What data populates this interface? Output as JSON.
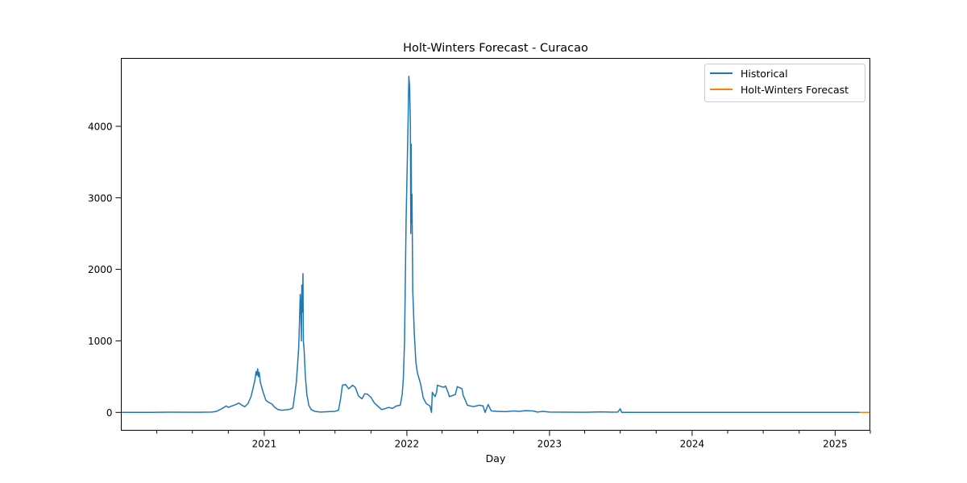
{
  "chart_data": {
    "type": "line",
    "title": "Holt-Winters Forecast - Curacao",
    "xlabel": "Day",
    "ylabel": "",
    "x_type": "date",
    "xlim": [
      "2020-01-01",
      "2025-03-31"
    ],
    "ylim": [
      -250,
      4950
    ],
    "x_ticks": [
      {
        "date": "2021-01-01",
        "label": "2021"
      },
      {
        "date": "2022-01-01",
        "label": "2022"
      },
      {
        "date": "2023-01-01",
        "label": "2023"
      },
      {
        "date": "2024-01-01",
        "label": "2024"
      },
      {
        "date": "2025-01-01",
        "label": "2025"
      }
    ],
    "x_minor_ticks": [
      "2020-04-01",
      "2020-07-01",
      "2020-10-01",
      "2021-04-01",
      "2021-07-01",
      "2021-10-01",
      "2022-04-01",
      "2022-07-01",
      "2022-10-01",
      "2023-04-01",
      "2023-07-01",
      "2023-10-01",
      "2024-04-01",
      "2024-07-01",
      "2024-10-01",
      "2025-04-01"
    ],
    "y_ticks": [
      0,
      1000,
      2000,
      3000,
      4000
    ],
    "y_tick_labels": [
      "0",
      "1000",
      "2000",
      "3000",
      "4000"
    ],
    "legend": {
      "position": "top-right",
      "entries": [
        "Historical",
        "Holt-Winters Forecast"
      ]
    },
    "grid": false,
    "series": [
      {
        "name": "Historical",
        "color": "#1f77b4",
        "points": [
          [
            "2020-01-01",
            0
          ],
          [
            "2020-03-15",
            0
          ],
          [
            "2020-05-01",
            3
          ],
          [
            "2020-07-15",
            2
          ],
          [
            "2020-08-20",
            5
          ],
          [
            "2020-09-01",
            15
          ],
          [
            "2020-09-10",
            40
          ],
          [
            "2020-09-20",
            70
          ],
          [
            "2020-09-25",
            90
          ],
          [
            "2020-10-01",
            70
          ],
          [
            "2020-10-10",
            90
          ],
          [
            "2020-10-20",
            110
          ],
          [
            "2020-10-28",
            130
          ],
          [
            "2020-11-05",
            100
          ],
          [
            "2020-11-12",
            80
          ],
          [
            "2020-11-20",
            120
          ],
          [
            "2020-11-28",
            220
          ],
          [
            "2020-12-03",
            330
          ],
          [
            "2020-12-08",
            450
          ],
          [
            "2020-12-11",
            570
          ],
          [
            "2020-12-13",
            520
          ],
          [
            "2020-12-15",
            610
          ],
          [
            "2020-12-17",
            500
          ],
          [
            "2020-12-19",
            560
          ],
          [
            "2020-12-22",
            420
          ],
          [
            "2020-12-28",
            300
          ],
          [
            "2021-01-05",
            170
          ],
          [
            "2021-01-12",
            140
          ],
          [
            "2021-01-20",
            120
          ],
          [
            "2021-01-28",
            70
          ],
          [
            "2021-02-05",
            40
          ],
          [
            "2021-02-15",
            30
          ],
          [
            "2021-02-25",
            35
          ],
          [
            "2021-03-05",
            40
          ],
          [
            "2021-03-15",
            60
          ],
          [
            "2021-03-20",
            250
          ],
          [
            "2021-03-24",
            420
          ],
          [
            "2021-03-27",
            650
          ],
          [
            "2021-03-30",
            900
          ],
          [
            "2021-04-01",
            1250
          ],
          [
            "2021-04-03",
            1650
          ],
          [
            "2021-04-05",
            1350
          ],
          [
            "2021-04-06",
            1000
          ],
          [
            "2021-04-07",
            1780
          ],
          [
            "2021-04-08",
            1400
          ],
          [
            "2021-04-09",
            1500
          ],
          [
            "2021-04-10",
            1940
          ],
          [
            "2021-04-11",
            1000
          ],
          [
            "2021-04-13",
            870
          ],
          [
            "2021-04-16",
            520
          ],
          [
            "2021-04-20",
            250
          ],
          [
            "2021-04-25",
            100
          ],
          [
            "2021-05-01",
            40
          ],
          [
            "2021-05-10",
            15
          ],
          [
            "2021-05-25",
            5
          ],
          [
            "2021-06-15",
            10
          ],
          [
            "2021-07-01",
            15
          ],
          [
            "2021-07-10",
            30
          ],
          [
            "2021-07-15",
            180
          ],
          [
            "2021-07-20",
            380
          ],
          [
            "2021-07-28",
            390
          ],
          [
            "2021-08-05",
            330
          ],
          [
            "2021-08-15",
            380
          ],
          [
            "2021-08-22",
            350
          ],
          [
            "2021-08-30",
            230
          ],
          [
            "2021-09-08",
            190
          ],
          [
            "2021-09-15",
            260
          ],
          [
            "2021-09-22",
            255
          ],
          [
            "2021-10-01",
            210
          ],
          [
            "2021-10-10",
            130
          ],
          [
            "2021-10-20",
            80
          ],
          [
            "2021-10-28",
            40
          ],
          [
            "2021-11-05",
            50
          ],
          [
            "2021-11-15",
            70
          ],
          [
            "2021-11-25",
            55
          ],
          [
            "2021-12-05",
            90
          ],
          [
            "2021-12-15",
            100
          ],
          [
            "2021-12-20",
            250
          ],
          [
            "2021-12-23",
            480
          ],
          [
            "2021-12-26",
            1000
          ],
          [
            "2021-12-28",
            1850
          ],
          [
            "2021-12-30",
            2700
          ],
          [
            "2022-01-02",
            3500
          ],
          [
            "2022-01-04",
            4050
          ],
          [
            "2022-01-06",
            4700
          ],
          [
            "2022-01-08",
            4550
          ],
          [
            "2022-01-10",
            4000
          ],
          [
            "2022-01-11",
            2500
          ],
          [
            "2022-01-12",
            3750
          ],
          [
            "2022-01-13",
            2650
          ],
          [
            "2022-01-14",
            3050
          ],
          [
            "2022-01-16",
            1700
          ],
          [
            "2022-01-20",
            1100
          ],
          [
            "2022-01-24",
            700
          ],
          [
            "2022-01-28",
            550
          ],
          [
            "2022-02-05",
            400
          ],
          [
            "2022-02-12",
            200
          ],
          [
            "2022-02-20",
            120
          ],
          [
            "2022-03-01",
            90
          ],
          [
            "2022-03-05",
            0
          ],
          [
            "2022-03-07",
            280
          ],
          [
            "2022-03-14",
            220
          ],
          [
            "2022-03-18",
            280
          ],
          [
            "2022-03-20",
            380
          ],
          [
            "2022-04-05",
            350
          ],
          [
            "2022-04-10",
            370
          ],
          [
            "2022-04-15",
            300
          ],
          [
            "2022-04-20",
            220
          ],
          [
            "2022-05-05",
            250
          ],
          [
            "2022-05-10",
            360
          ],
          [
            "2022-05-22",
            330
          ],
          [
            "2022-05-25",
            240
          ],
          [
            "2022-06-05",
            100
          ],
          [
            "2022-06-20",
            80
          ],
          [
            "2022-07-05",
            100
          ],
          [
            "2022-07-15",
            90
          ],
          [
            "2022-07-20",
            0
          ],
          [
            "2022-07-28",
            110
          ],
          [
            "2022-08-05",
            20
          ],
          [
            "2022-08-20",
            15
          ],
          [
            "2022-09-10",
            10
          ],
          [
            "2022-10-01",
            20
          ],
          [
            "2022-10-15",
            15
          ],
          [
            "2022-11-01",
            25
          ],
          [
            "2022-11-20",
            20
          ],
          [
            "2022-12-01",
            5
          ],
          [
            "2022-12-15",
            15
          ],
          [
            "2023-01-01",
            5
          ],
          [
            "2023-02-15",
            3
          ],
          [
            "2023-04-01",
            2
          ],
          [
            "2023-05-15",
            8
          ],
          [
            "2023-06-10",
            3
          ],
          [
            "2023-06-25",
            5
          ],
          [
            "2023-07-01",
            50
          ],
          [
            "2023-07-05",
            0
          ],
          [
            "2025-03-05",
            0
          ]
        ]
      },
      {
        "name": "Holt-Winters Forecast",
        "color": "#ff7f0e",
        "points": [
          [
            "2025-03-05",
            0
          ],
          [
            "2025-03-31",
            0
          ]
        ]
      }
    ]
  }
}
